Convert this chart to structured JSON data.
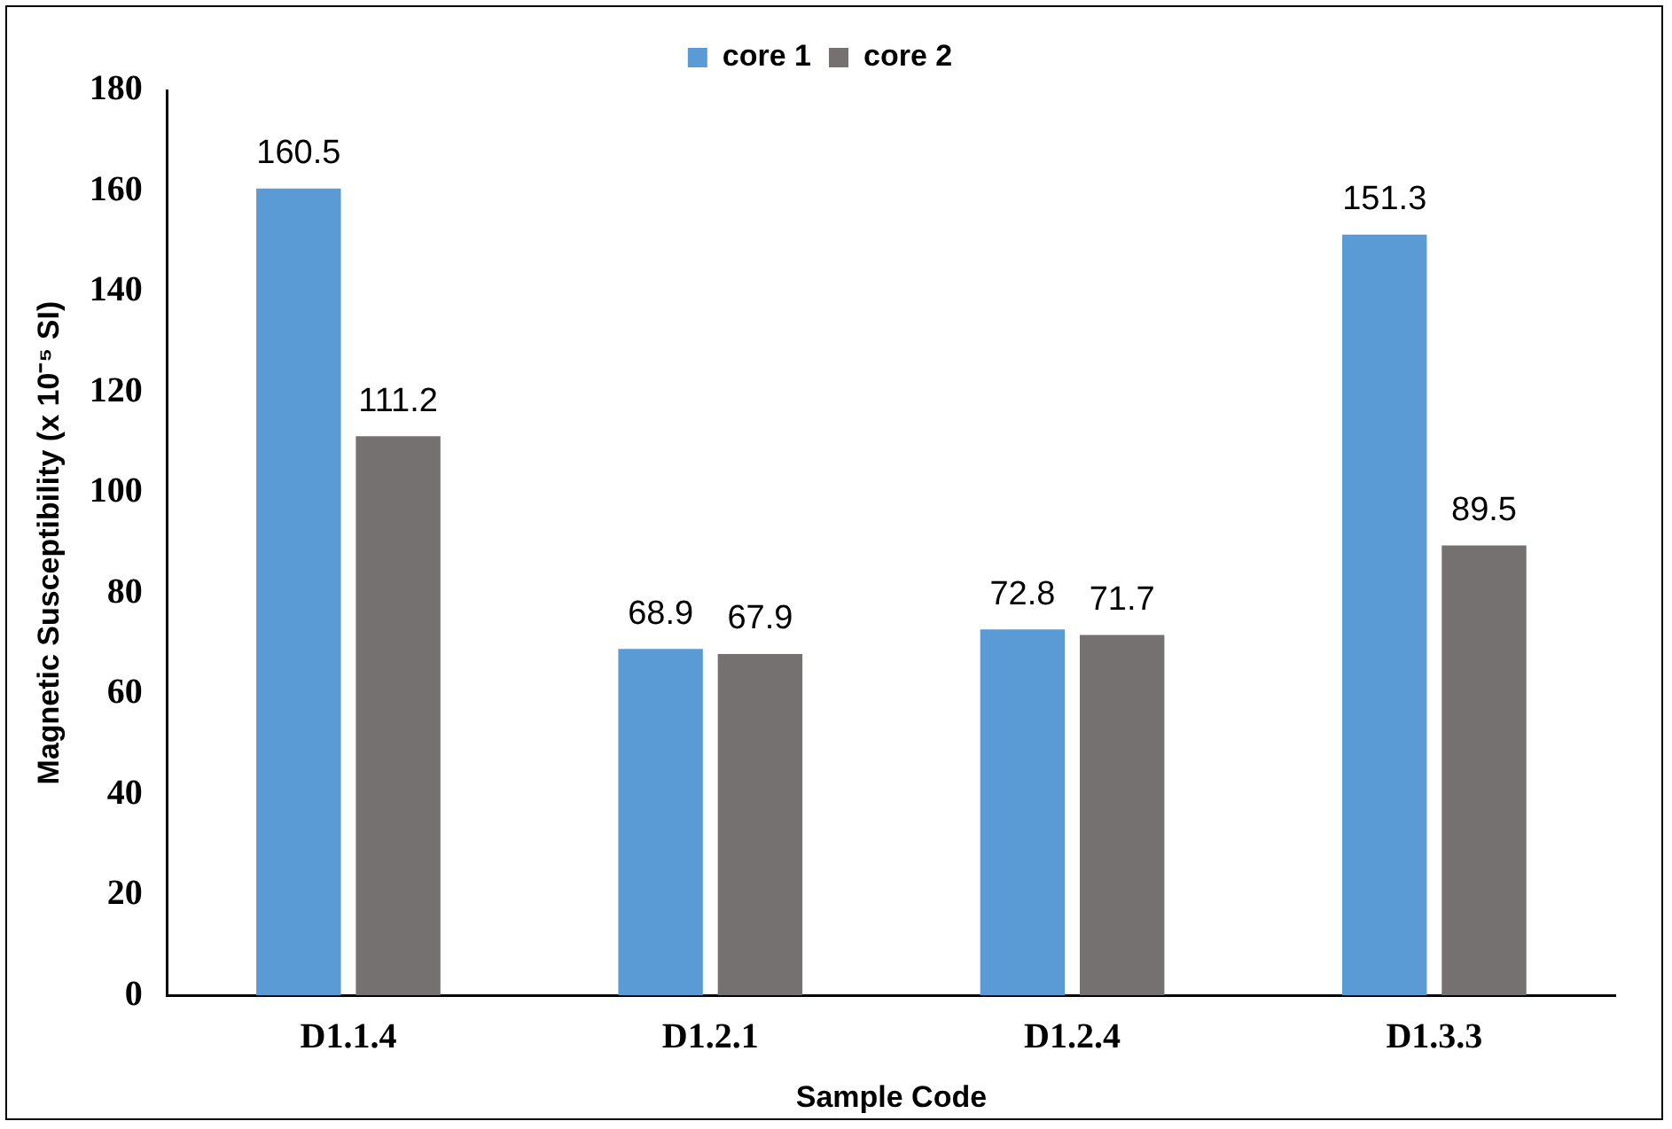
{
  "chart_data": {
    "type": "bar",
    "xlabel": "Sample Code",
    "ylabel": "Magnetic Susceptibility (x 10⁻⁵ SI)",
    "categories": [
      "D1.1.4",
      "D1.2.1",
      "D1.2.4",
      "D1.3.3"
    ],
    "series": [
      {
        "name": "core 1",
        "color": "#5b9bd5",
        "values": [
          160.5,
          68.9,
          72.8,
          151.3
        ]
      },
      {
        "name": "core 2",
        "color": "#767171",
        "values": [
          111.2,
          67.9,
          71.7,
          89.5
        ]
      }
    ],
    "ylim": [
      0,
      180
    ],
    "yticks": [
      0,
      20,
      40,
      60,
      80,
      100,
      120,
      140,
      160,
      180
    ],
    "grid": false,
    "legend": "top",
    "data_labels": true
  }
}
